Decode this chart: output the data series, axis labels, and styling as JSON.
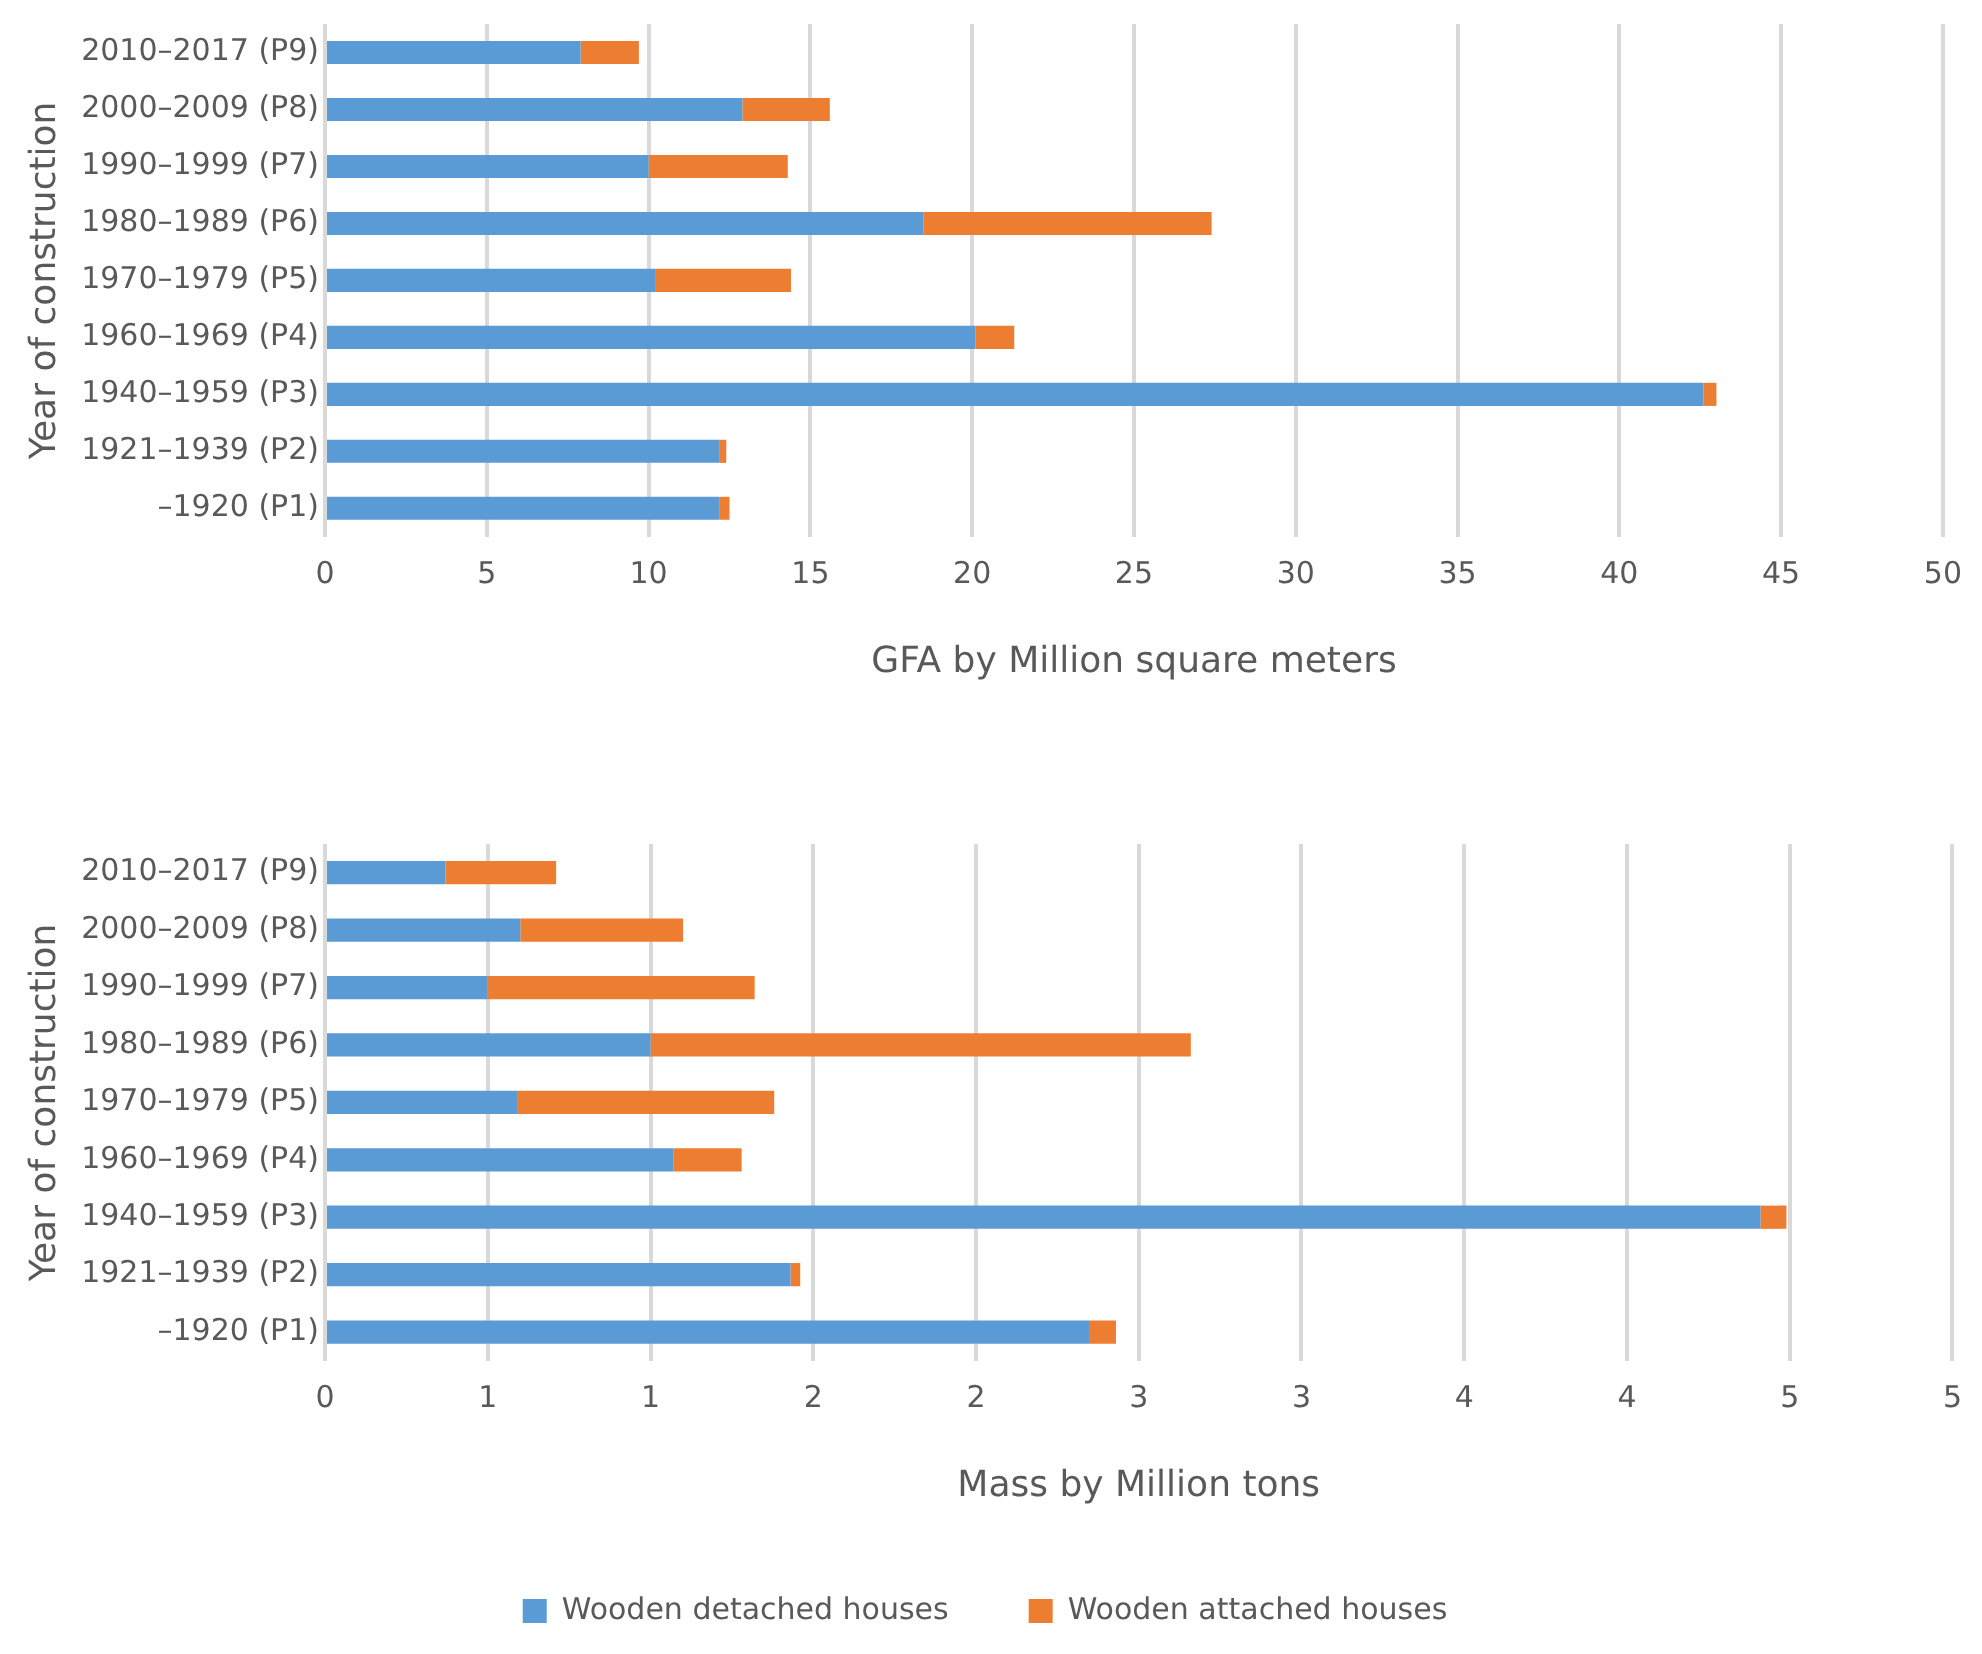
{
  "chart_data": [
    {
      "type": "bar",
      "orientation": "horizontal",
      "stacked": true,
      "xlabel": "GFA by Million square meters",
      "ylabel": "Year of construction",
      "categories": [
        "2010–2017 (P9)",
        "2000–2009 (P8)",
        "1990–1999 (P7)",
        "1980–1989 (P6)",
        "1970–1979 (P5)",
        "1960–1969 (P4)",
        "1940–1959 (P3)",
        "1921–1939 (P2)",
        "–1920 (P1)"
      ],
      "series": [
        {
          "color": "#5b9bd5",
          "values": [
            7.9,
            12.9,
            10.0,
            18.5,
            10.2,
            20.1,
            42.6,
            12.2,
            12.2
          ]
        },
        {
          "color": "#ed7d31",
          "values": [
            1.8,
            2.7,
            4.3,
            8.9,
            4.2,
            1.2,
            0.4,
            0.2,
            0.3
          ]
        }
      ],
      "xlim": [
        0,
        50
      ],
      "xticks": [
        0,
        5,
        10,
        15,
        20,
        25,
        30,
        35,
        40,
        45,
        50
      ],
      "grid": "x"
    },
    {
      "type": "bar",
      "orientation": "horizontal",
      "stacked": true,
      "xlabel": "Mass by Million tons",
      "ylabel": "Year of construction",
      "categories": [
        "2010–2017 (P9)",
        "2000–2009 (P8)",
        "1990–1999 (P7)",
        "1980–1989 (P6)",
        "1970–1979 (P5)",
        "1960–1969 (P4)",
        "1940–1959 (P3)",
        "1921–1939 (P2)",
        "–1920 (P1)"
      ],
      "series": [
        {
          "name": "Wooden detached houses",
          "color": "#5b9bd5",
          "values": [
            0.37,
            0.6,
            0.5,
            1.0,
            0.59,
            1.07,
            4.41,
            1.43,
            2.35
          ]
        },
        {
          "name": "Wooden attached houses",
          "color": "#ed7d31",
          "values": [
            0.34,
            0.5,
            0.82,
            1.66,
            0.79,
            0.21,
            0.08,
            0.03,
            0.08
          ]
        }
      ],
      "xlim": [
        0,
        5
      ],
      "xticks": [
        0,
        {
          "value": 0.5,
          "label": "1"
        },
        1,
        {
          "value": 1.5,
          "label": "2"
        },
        2,
        {
          "value": 2.5,
          "label": "3"
        },
        3,
        {
          "value": 3.5,
          "label": "4"
        },
        4,
        {
          "value": 4.5,
          "label": "5"
        },
        5
      ],
      "grid": "x",
      "legend": "bottom"
    }
  ]
}
